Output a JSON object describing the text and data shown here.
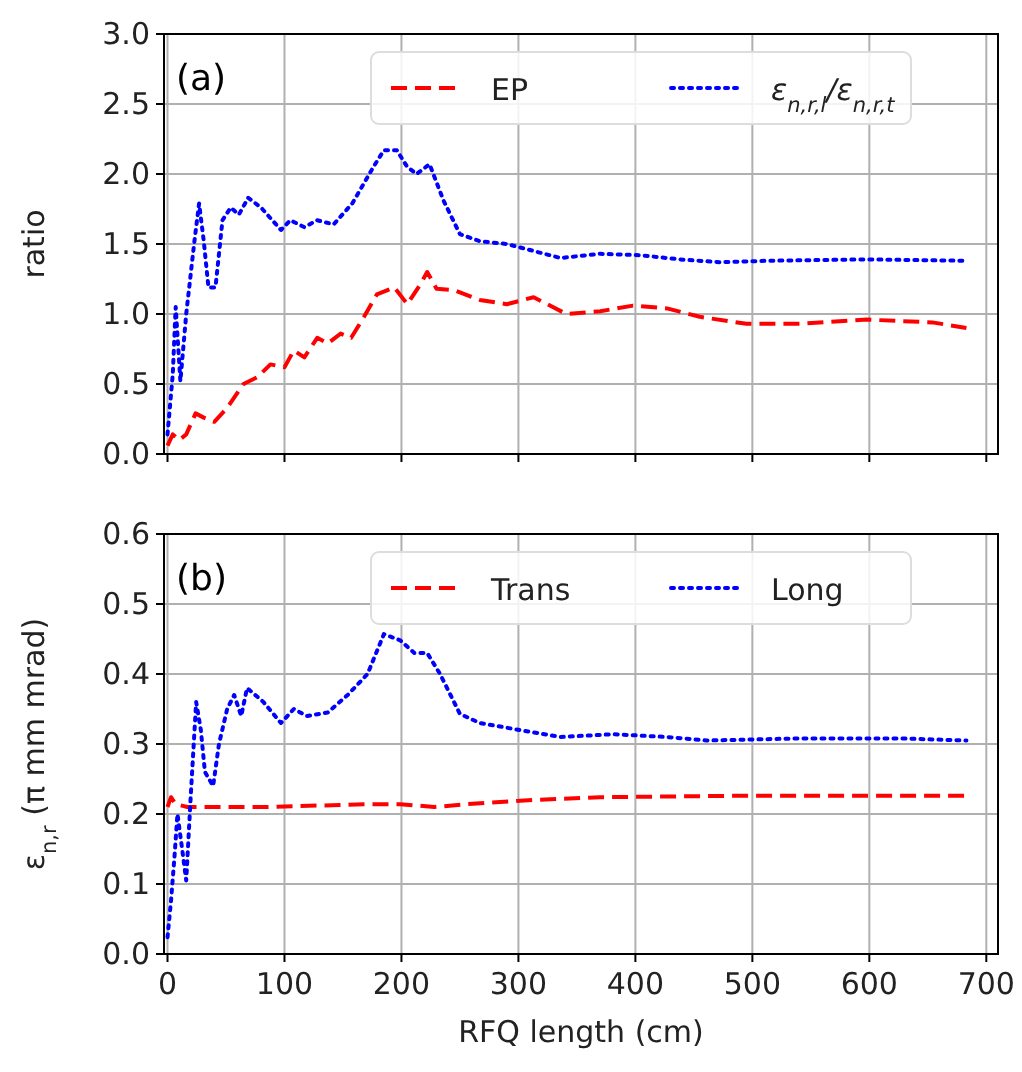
{
  "chart_data": [
    {
      "type": "line",
      "ylabel": "ratio",
      "annotations": [
        "(a)"
      ],
      "xlim": [
        -3,
        710
      ],
      "xticks": [
        0,
        100,
        200,
        300,
        400,
        500,
        600,
        700
      ],
      "ylim": [
        0,
        3
      ],
      "yticks": [
        {
          "value": 0,
          "label": "0.0"
        },
        {
          "value": 0.5,
          "label": "0.5"
        },
        {
          "value": 1,
          "label": "1.0"
        },
        {
          "value": 1.5,
          "label": "1.5"
        },
        {
          "value": 2,
          "label": "2.0"
        },
        {
          "value": 2.5,
          "label": "2.5"
        },
        {
          "value": 3,
          "label": "3.0"
        }
      ],
      "tick_labels": "y",
      "grid": true,
      "legend": "top",
      "series": [
        {
          "name": "EP",
          "color": "#ff0000",
          "line_style": "dashed",
          "x": [
            0,
            4.5,
            10,
            16,
            24,
            31,
            40,
            51,
            65,
            77,
            88,
            100,
            108,
            117,
            128,
            137,
            148,
            157,
            168,
            179,
            194,
            205,
            216,
            222,
            230,
            245,
            267,
            290,
            313,
            341,
            370,
            398,
            427,
            455,
            495,
            541,
            598,
            654,
            683
          ],
          "values": [
            0.06,
            0.14,
            0.1,
            0.14,
            0.29,
            0.26,
            0.23,
            0.33,
            0.5,
            0.55,
            0.64,
            0.62,
            0.74,
            0.69,
            0.83,
            0.79,
            0.86,
            0.83,
            0.98,
            1.14,
            1.19,
            1.07,
            1.21,
            1.3,
            1.18,
            1.17,
            1.1,
            1.07,
            1.12,
            1.0,
            1.02,
            1.06,
            1.04,
            0.98,
            0.93,
            0.93,
            0.96,
            0.94,
            0.9
          ]
        },
        {
          "name": "ε$_{n,r,l}$/ε$_{n,r,t}$",
          "color": "#0000ff",
          "line_style": "dotted",
          "x": [
            0,
            4.5,
            7,
            11,
            16,
            23,
            27,
            31,
            35,
            41,
            47,
            54,
            61,
            69,
            80,
            97,
            105,
            117,
            128,
            142,
            158,
            176,
            185,
            196,
            205,
            213,
            224,
            236,
            250,
            267,
            290,
            313,
            336,
            370,
            404,
            438,
            472,
            512,
            598,
            683
          ],
          "values": [
            0.14,
            0.57,
            1.05,
            0.52,
            1.0,
            1.52,
            1.79,
            1.52,
            1.19,
            1.19,
            1.67,
            1.76,
            1.71,
            1.83,
            1.76,
            1.6,
            1.67,
            1.62,
            1.67,
            1.64,
            1.79,
            2.05,
            2.17,
            2.17,
            2.05,
            2.0,
            2.07,
            1.81,
            1.57,
            1.52,
            1.5,
            1.45,
            1.4,
            1.43,
            1.42,
            1.39,
            1.37,
            1.38,
            1.39,
            1.38
          ]
        }
      ]
    },
    {
      "type": "line",
      "xlabel": "RFQ length (cm)",
      "ylabel": "ε$_{n,r}$ (π mm mrad)",
      "annotations": [
        "(b)"
      ],
      "xlim": [
        -3,
        710
      ],
      "xticks": [
        0,
        100,
        200,
        300,
        400,
        500,
        600,
        700
      ],
      "ylim": [
        0,
        0.6
      ],
      "yticks": [
        {
          "value": 0,
          "label": "0.0"
        },
        0.1,
        0.2,
        0.3,
        0.4,
        0.5,
        0.6
      ],
      "grid": true,
      "legend": "top",
      "series": [
        {
          "name": "Trans",
          "color": "#ff0000",
          "line_style": "dashed",
          "x": [
            0,
            3,
            7,
            17,
            85,
            171,
            199,
            228,
            256,
            313,
            370,
            484,
            683
          ],
          "values": [
            0.21,
            0.224,
            0.214,
            0.21,
            0.21,
            0.214,
            0.214,
            0.21,
            0.214,
            0.22,
            0.224,
            0.226,
            0.226
          ]
        },
        {
          "name": "Long",
          "color": "#0000ff",
          "line_style": "dotted",
          "x": [
            0,
            3,
            6,
            8.5,
            12.5,
            16,
            20,
            24.5,
            28.5,
            32,
            39,
            44,
            51,
            57,
            63,
            68,
            82,
            97,
            108,
            119,
            137,
            154,
            171,
            185,
            199,
            211,
            222,
            233,
            250,
            267,
            301,
            336,
            381,
            427,
            461,
            541,
            626,
            683
          ],
          "values": [
            0.024,
            0.076,
            0.14,
            0.2,
            0.15,
            0.105,
            0.23,
            0.36,
            0.32,
            0.26,
            0.24,
            0.3,
            0.35,
            0.37,
            0.34,
            0.38,
            0.36,
            0.33,
            0.35,
            0.34,
            0.345,
            0.37,
            0.4,
            0.457,
            0.448,
            0.43,
            0.43,
            0.4,
            0.343,
            0.33,
            0.32,
            0.31,
            0.314,
            0.31,
            0.305,
            0.308,
            0.308,
            0.305
          ]
        }
      ]
    }
  ]
}
